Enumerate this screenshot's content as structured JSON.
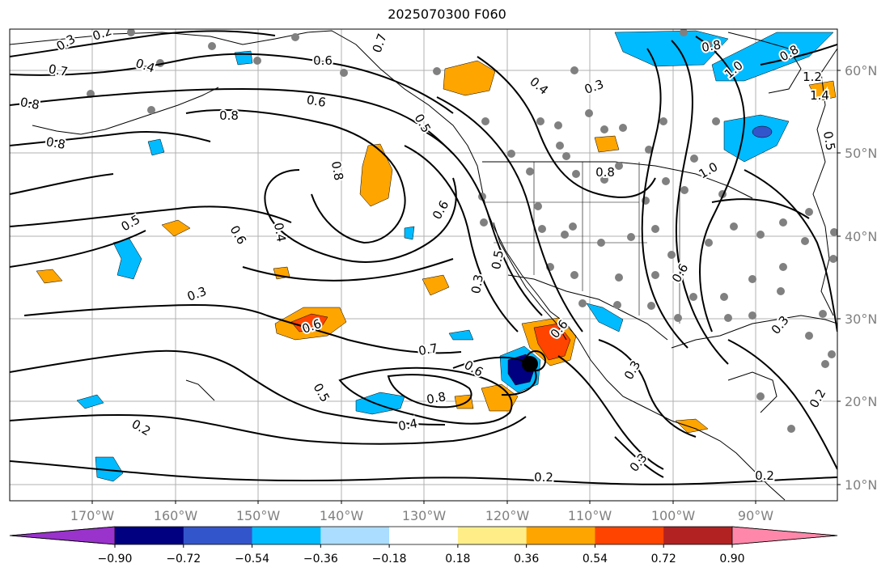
{
  "title": "2025070300 F060",
  "map": {
    "lon_labels": [
      "170°W",
      "160°W",
      "150°W",
      "140°W",
      "130°W",
      "120°W",
      "110°W",
      "100°W",
      "90°W"
    ],
    "lat_labels": [
      "60°N",
      "50°N",
      "40°N",
      "30°N",
      "20°N",
      "10°N"
    ],
    "contour_labels": [
      "0.3",
      "0.2",
      "0.7",
      "0.4",
      "0.8",
      "0.8",
      "0.6",
      "0.7",
      "0.6",
      "0.8",
      "0.5",
      "0.4",
      "0.3",
      "0.8",
      "0.8",
      "1.2",
      "1.4",
      "1.0",
      "0.8",
      "0.8",
      "0.5",
      "0.4",
      "0.6",
      "0.6",
      "0.5",
      "0.6",
      "1.0",
      "0.5",
      "0.3",
      "0.6",
      "0.3",
      "0.6",
      "0.7",
      "0.6",
      "0.8",
      "0.5",
      "0.4",
      "0.2",
      "0.2",
      "0.3",
      "0.2",
      "0.3",
      "0.3",
      "0.2"
    ]
  },
  "colorbar": {
    "ticks": [
      "−0.90",
      "−0.72",
      "−0.54",
      "−0.36",
      "−0.18",
      "0.18",
      "0.36",
      "0.54",
      "0.72",
      "0.90"
    ],
    "colors": [
      "#9933cc",
      "#000080",
      "#3355cc",
      "#00bbff",
      "#aaddff",
      "#ffffff",
      "#ffee88",
      "#ffa500",
      "#ff4400",
      "#b22222",
      "#ff88aa"
    ]
  }
}
